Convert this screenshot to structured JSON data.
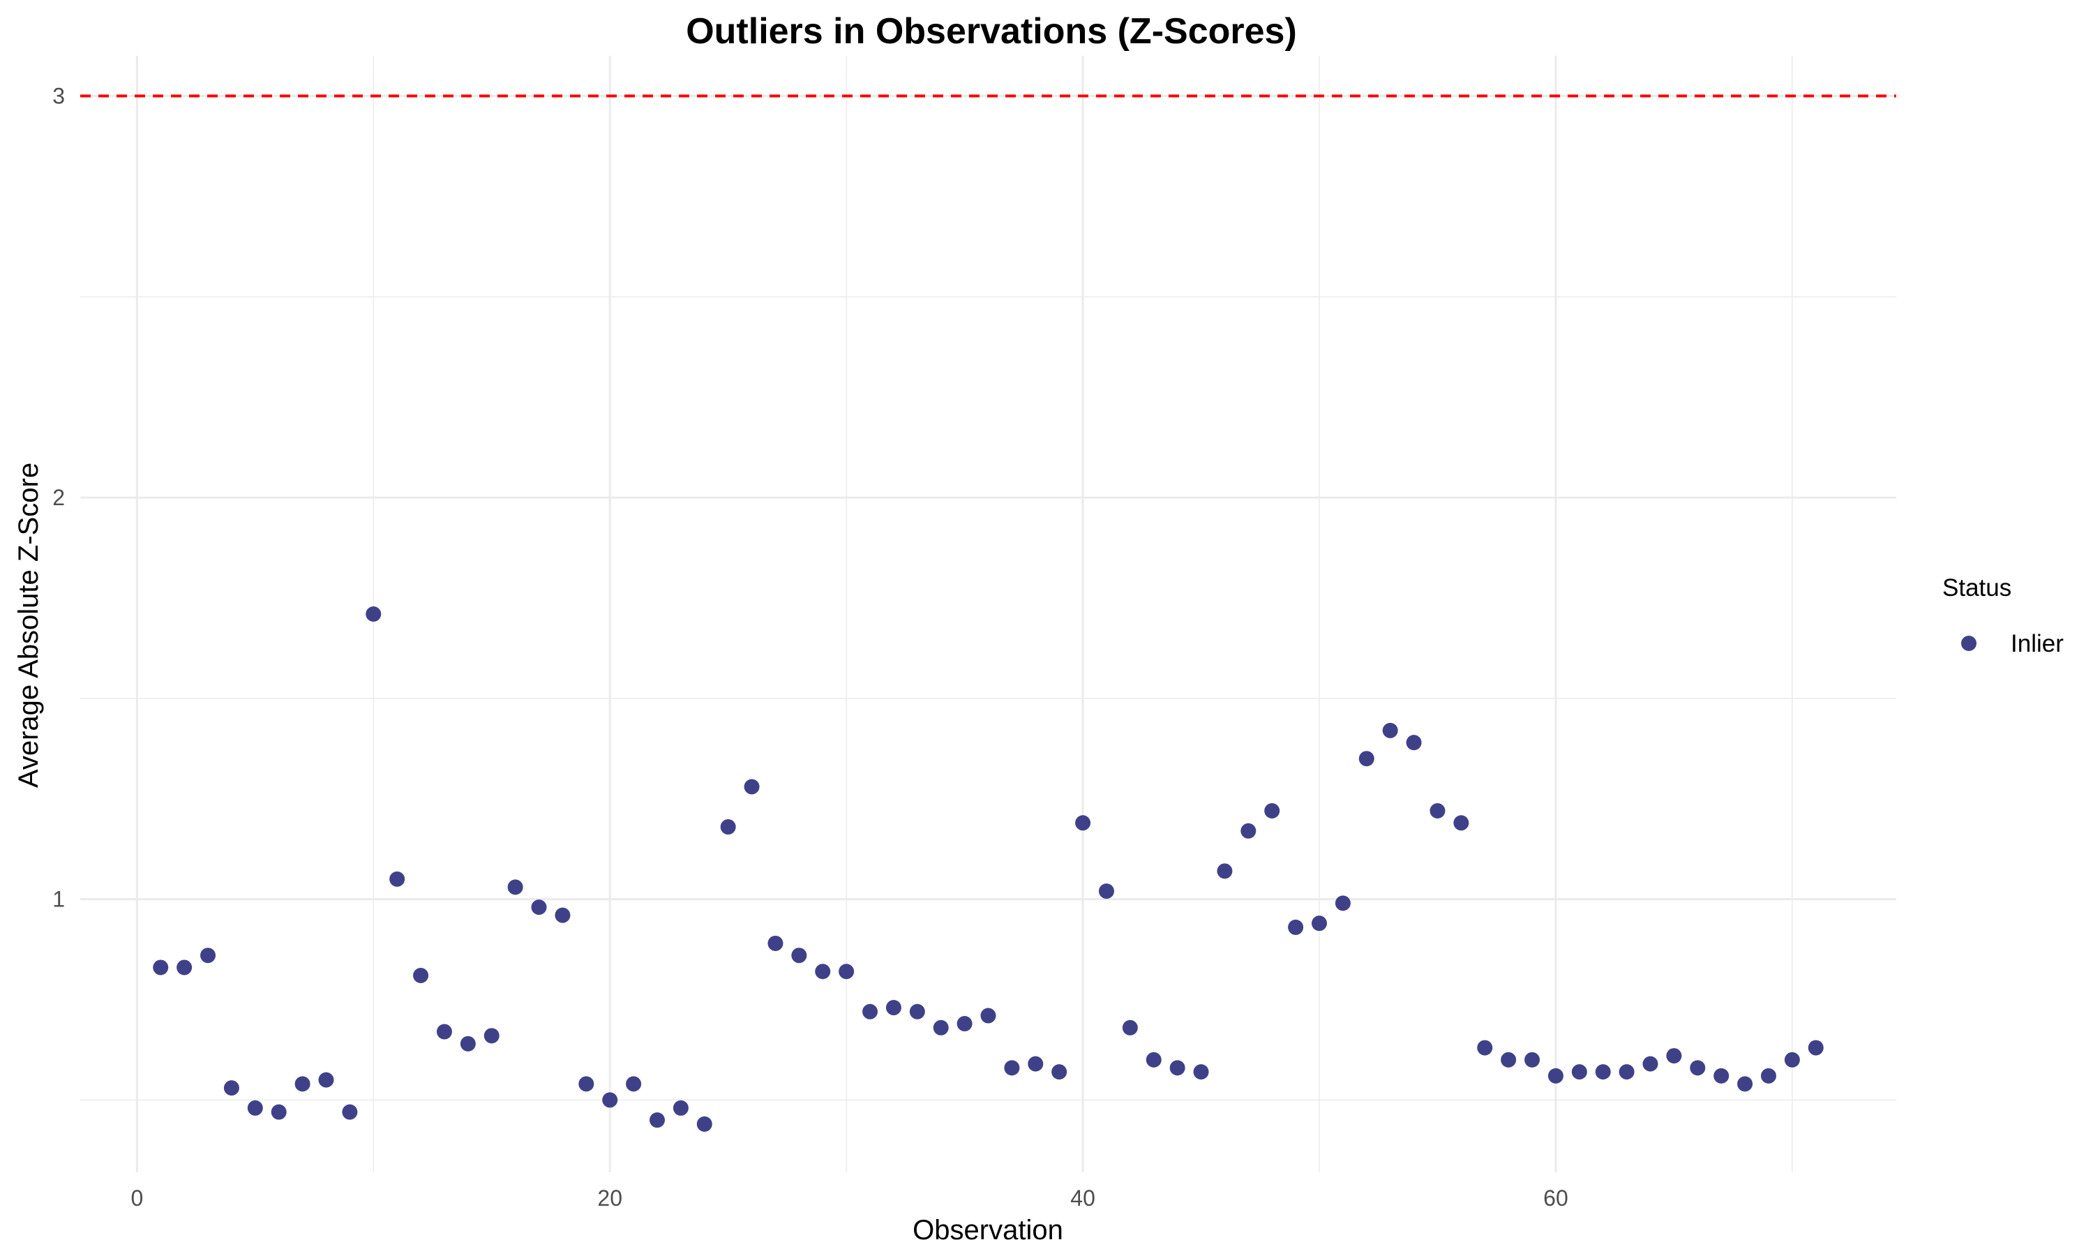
{
  "chart_data": {
    "type": "scatter",
    "title": "Outliers in Observations (Z-Scores)",
    "xlabel": "Observation",
    "ylabel": "Average Absolute Z-Score",
    "xlim": [
      -2.4,
      74.4
    ],
    "ylim": [
      0.32,
      3.1
    ],
    "x_ticks": [
      0,
      20,
      40,
      60
    ],
    "y_ticks": [
      1,
      2,
      3
    ],
    "x_minor_ticks": [
      10,
      30,
      50,
      70
    ],
    "y_minor_ticks": [
      0.5,
      1.5,
      2.5
    ],
    "threshold": {
      "value": 3,
      "color": "#ff0000",
      "style": "dashed"
    },
    "grid": true,
    "legend": {
      "title": "Status",
      "placement": "right",
      "entries": [
        {
          "label": "Inlier",
          "color": "#3f4188"
        }
      ]
    },
    "series": [
      {
        "name": "Inlier",
        "color": "#3f4188",
        "x": [
          1,
          2,
          3,
          4,
          5,
          6,
          7,
          8,
          9,
          10,
          11,
          12,
          13,
          14,
          15,
          16,
          17,
          18,
          19,
          20,
          21,
          22,
          23,
          24,
          25,
          26,
          27,
          28,
          29,
          30,
          31,
          32,
          33,
          34,
          35,
          36,
          37,
          38,
          39,
          40,
          41,
          42,
          43,
          44,
          45,
          46,
          47,
          48,
          49,
          50,
          51,
          52,
          53,
          54,
          55,
          56,
          57,
          58,
          59,
          60,
          61,
          62,
          63,
          64,
          65,
          66,
          67,
          68,
          69,
          70,
          71
        ],
        "y": [
          0.83,
          0.83,
          0.86,
          0.53,
          0.48,
          0.47,
          0.54,
          0.55,
          0.47,
          1.71,
          1.05,
          0.81,
          0.67,
          0.64,
          0.66,
          1.03,
          0.98,
          0.96,
          0.54,
          0.5,
          0.54,
          0.45,
          0.48,
          0.44,
          1.18,
          1.28,
          0.89,
          0.86,
          0.82,
          0.82,
          0.72,
          0.73,
          0.72,
          0.68,
          0.69,
          0.71,
          0.58,
          0.59,
          0.57,
          1.19,
          1.02,
          0.68,
          0.6,
          0.58,
          0.57,
          1.07,
          1.17,
          1.22,
          0.93,
          0.94,
          0.99,
          1.35,
          1.42,
          1.39,
          1.22,
          1.19,
          0.63,
          0.6,
          0.6,
          0.56,
          0.57,
          0.57,
          0.57,
          0.59,
          0.61,
          0.58,
          0.56,
          0.54,
          0.56,
          0.6,
          0.63
        ]
      }
    ]
  }
}
